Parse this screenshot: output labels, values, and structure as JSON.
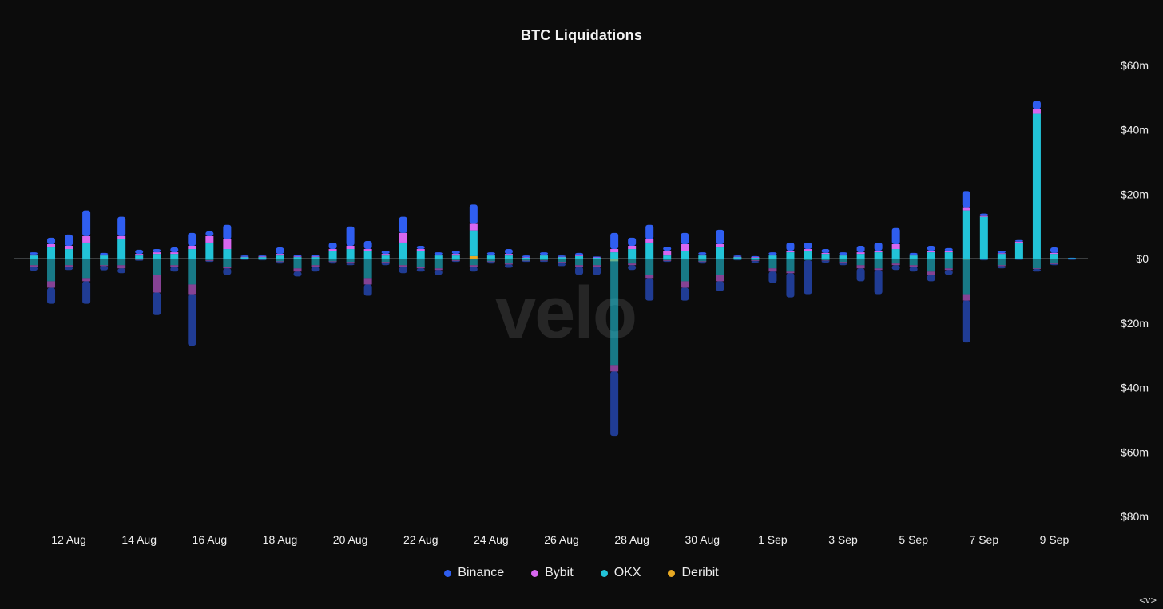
{
  "colors": {
    "background": "#0c0c0c",
    "binance": "#2f5ef0",
    "bybit": "#d867f0",
    "okx": "#22c3d8",
    "deribit": "#e8a923",
    "zero_line": "#8a9296"
  },
  "watermark": "velo",
  "corner_nav": "<v>",
  "chart_data": {
    "type": "bar",
    "title": "BTC Liquidations",
    "stacked": true,
    "diverging": true,
    "ylim": [
      -80,
      60
    ],
    "y_unit": "$m",
    "y_ticks": [
      {
        "value": 60,
        "label": "$60m"
      },
      {
        "value": 40,
        "label": "$40m"
      },
      {
        "value": 20,
        "label": "$20m"
      },
      {
        "value": 0,
        "label": "$0"
      },
      {
        "value": -20,
        "label": "$20m"
      },
      {
        "value": -40,
        "label": "$40m"
      },
      {
        "value": -60,
        "label": "$60m"
      },
      {
        "value": -80,
        "label": "$80m"
      }
    ],
    "x_ticks": [
      {
        "date": "2024-08-12",
        "label": "12 Aug"
      },
      {
        "date": "2024-08-14",
        "label": "14 Aug"
      },
      {
        "date": "2024-08-16",
        "label": "16 Aug"
      },
      {
        "date": "2024-08-18",
        "label": "18 Aug"
      },
      {
        "date": "2024-08-20",
        "label": "20 Aug"
      },
      {
        "date": "2024-08-22",
        "label": "22 Aug"
      },
      {
        "date": "2024-08-24",
        "label": "24 Aug"
      },
      {
        "date": "2024-08-26",
        "label": "26 Aug"
      },
      {
        "date": "2024-08-28",
        "label": "28 Aug"
      },
      {
        "date": "2024-08-30",
        "label": "30 Aug"
      },
      {
        "date": "2024-09-01",
        "label": "1 Sep"
      },
      {
        "date": "2024-09-03",
        "label": "3 Sep"
      },
      {
        "date": "2024-09-05",
        "label": "5 Sep"
      },
      {
        "date": "2024-09-07",
        "label": "7 Sep"
      },
      {
        "date": "2024-09-09",
        "label": "9 Sep"
      }
    ],
    "legend": [
      {
        "name": "Binance",
        "color": "#2f5ef0"
      },
      {
        "name": "Bybit",
        "color": "#d867f0"
      },
      {
        "name": "OKX",
        "color": "#22c3d8"
      },
      {
        "name": "Deribit",
        "color": "#e8a923"
      }
    ],
    "legend_position": "bottom-center",
    "series_order": [
      "deribit",
      "okx",
      "bybit",
      "binance"
    ],
    "bars": [
      {
        "t": "2024-08-11 00:00",
        "pos": {
          "okx": 1,
          "bybit": 0.3,
          "binance": 0.7
        },
        "neg": {
          "okx": 2,
          "bybit": 0.5,
          "binance": 1.2
        }
      },
      {
        "t": "2024-08-11 12:00",
        "pos": {
          "okx": 3.5,
          "bybit": 1,
          "binance": 2
        },
        "neg": {
          "okx": 7,
          "bybit": 2,
          "binance": 5
        }
      },
      {
        "t": "2024-08-12 00:00",
        "pos": {
          "okx": 3,
          "bybit": 1,
          "binance": 3.5
        },
        "neg": {
          "okx": 2,
          "bybit": 0.5,
          "binance": 1
        }
      },
      {
        "t": "2024-08-12 12:00",
        "pos": {
          "okx": 5,
          "bybit": 2,
          "binance": 8
        },
        "neg": {
          "okx": 6,
          "bybit": 1,
          "binance": 7
        }
      },
      {
        "t": "2024-08-13 00:00",
        "pos": {
          "okx": 1,
          "bybit": 0.2,
          "binance": 0.6
        },
        "neg": {
          "okx": 2,
          "bybit": 0.3,
          "binance": 1.3
        }
      },
      {
        "t": "2024-08-13 12:00",
        "pos": {
          "okx": 6,
          "bybit": 1,
          "binance": 6
        },
        "neg": {
          "okx": 2,
          "bybit": 1,
          "binance": 1.5
        }
      },
      {
        "t": "2024-08-14 00:00",
        "pos": {
          "okx": 1,
          "bybit": 0.5,
          "binance": 1.3
        },
        "neg": {
          "okx": 0.3,
          "bybit": 0.1,
          "binance": 0.2
        }
      },
      {
        "t": "2024-08-14 12:00",
        "pos": {
          "okx": 1.5,
          "bybit": 0.5,
          "binance": 1
        },
        "neg": {
          "okx": 5,
          "bybit": 5.5,
          "binance": 7
        }
      },
      {
        "t": "2024-08-15 00:00",
        "pos": {
          "okx": 1.5,
          "bybit": 0.5,
          "binance": 1.5
        },
        "neg": {
          "okx": 2,
          "bybit": 0.5,
          "binance": 1.5
        }
      },
      {
        "t": "2024-08-15 12:00",
        "pos": {
          "okx": 3,
          "bybit": 1,
          "binance": 4
        },
        "neg": {
          "okx": 8,
          "bybit": 3,
          "binance": 16
        }
      },
      {
        "t": "2024-08-16 00:00",
        "pos": {
          "okx": 5,
          "bybit": 2,
          "binance": 1.5
        },
        "neg": {
          "okx": 0.5,
          "bybit": 0.2,
          "binance": 0.3
        }
      },
      {
        "t": "2024-08-16 12:00",
        "pos": {
          "okx": 3,
          "bybit": 3,
          "binance": 4.5
        },
        "neg": {
          "okx": 2.5,
          "bybit": 0.5,
          "binance": 2
        }
      },
      {
        "t": "2024-08-17 00:00",
        "pos": {
          "okx": 0.5,
          "bybit": 0.1,
          "binance": 0.4
        },
        "neg": {
          "okx": 0.2,
          "bybit": 0,
          "binance": 0.1
        }
      },
      {
        "t": "2024-08-17 12:00",
        "pos": {
          "okx": 0.5,
          "bybit": 0.2,
          "binance": 0.3
        },
        "neg": {
          "okx": 0.3,
          "bybit": 0,
          "binance": 0.2
        }
      },
      {
        "t": "2024-08-18 00:00",
        "pos": {
          "okx": 1,
          "bybit": 0.5,
          "binance": 2
        },
        "neg": {
          "okx": 0.8,
          "bybit": 0.2,
          "binance": 0.5
        }
      },
      {
        "t": "2024-08-18 12:00",
        "pos": {
          "okx": 0.5,
          "bybit": 0.2,
          "binance": 0.5
        },
        "neg": {
          "okx": 3,
          "bybit": 1,
          "binance": 1.5
        }
      },
      {
        "t": "2024-08-19 00:00",
        "pos": {
          "okx": 0.5,
          "bybit": 0.2,
          "binance": 0.5
        },
        "neg": {
          "okx": 2,
          "bybit": 0.5,
          "binance": 1.5
        }
      },
      {
        "t": "2024-08-19 12:00",
        "pos": {
          "okx": 2.5,
          "bybit": 0.5,
          "binance": 2
        },
        "neg": {
          "okx": 0.8,
          "bybit": 0.2,
          "binance": 0.5
        }
      },
      {
        "t": "2024-08-20 00:00",
        "pos": {
          "okx": 3,
          "bybit": 1,
          "binance": 6
        },
        "neg": {
          "okx": 1,
          "bybit": 0.5,
          "binance": 0.5
        }
      },
      {
        "t": "2024-08-20 12:00",
        "pos": {
          "okx": 2.5,
          "bybit": 0.5,
          "binance": 2.5
        },
        "neg": {
          "okx": 6,
          "bybit": 2,
          "binance": 3.5
        }
      },
      {
        "t": "2024-08-21 00:00",
        "pos": {
          "okx": 1,
          "bybit": 0.5,
          "binance": 1
        },
        "neg": {
          "okx": 1,
          "bybit": 0.3,
          "binance": 0.7
        }
      },
      {
        "t": "2024-08-21 12:00",
        "pos": {
          "okx": 5,
          "bybit": 3,
          "binance": 5
        },
        "neg": {
          "okx": 2,
          "bybit": 0.5,
          "binance": 2
        }
      },
      {
        "t": "2024-08-22 00:00",
        "pos": {
          "okx": 2.5,
          "bybit": 0.5,
          "binance": 1
        },
        "neg": {
          "okx": 2.5,
          "bybit": 0.5,
          "binance": 1
        }
      },
      {
        "t": "2024-08-22 12:00",
        "pos": {
          "okx": 1,
          "bybit": 0.2,
          "binance": 0.8
        },
        "neg": {
          "okx": 3,
          "bybit": 0.5,
          "binance": 1.5
        }
      },
      {
        "t": "2024-08-23 00:00",
        "pos": {
          "okx": 1,
          "bybit": 0.5,
          "binance": 1
        },
        "neg": {
          "okx": 0.5,
          "bybit": 0.2,
          "binance": 0.3
        }
      },
      {
        "t": "2024-08-23 12:00",
        "pos": {
          "okx": 8,
          "bybit": 2,
          "binance": 6
        },
        "deribit": 0.8,
        "neg": {
          "okx": 2,
          "bybit": 0.5,
          "binance": 1.5
        }
      },
      {
        "t": "2024-08-24 00:00",
        "pos": {
          "okx": 1,
          "bybit": 0.2,
          "binance": 0.8
        },
        "neg": {
          "okx": 0.8,
          "bybit": 0.2,
          "binance": 0.5
        }
      },
      {
        "t": "2024-08-24 12:00",
        "pos": {
          "okx": 1,
          "bybit": 0.5,
          "binance": 1.5
        },
        "neg": {
          "okx": 1.5,
          "bybit": 0.3,
          "binance": 1
        }
      },
      {
        "t": "2024-08-25 00:00",
        "pos": {
          "okx": 0.3,
          "bybit": 0.1,
          "binance": 0.6
        },
        "neg": {
          "okx": 0.6,
          "bybit": 0.1,
          "binance": 0.3
        }
      },
      {
        "t": "2024-08-25 12:00",
        "pos": {
          "okx": 1,
          "bybit": 0.2,
          "binance": 0.8
        },
        "neg": {
          "okx": 0.5,
          "bybit": 0.1,
          "binance": 0.4
        }
      },
      {
        "t": "2024-08-26 00:00",
        "pos": {
          "okx": 0.5,
          "bybit": 0.1,
          "binance": 0.4
        },
        "neg": {
          "okx": 1,
          "bybit": 0.3,
          "binance": 1
        }
      },
      {
        "t": "2024-08-26 12:00",
        "pos": {
          "okx": 0.8,
          "bybit": 0.2,
          "binance": 0.8
        },
        "neg": {
          "okx": 2,
          "bybit": 0.5,
          "binance": 2.5
        }
      },
      {
        "t": "2024-08-27 00:00",
        "pos": {
          "okx": 0.3,
          "bybit": 0.1,
          "binance": 0.3
        },
        "neg": {
          "okx": 2,
          "bybit": 0.5,
          "binance": 2.5
        }
      },
      {
        "t": "2024-08-27 12:00",
        "pos": {
          "okx": 2,
          "bybit": 1,
          "binance": 5
        },
        "deribit": -0.8,
        "neg": {
          "okx": 33,
          "bybit": 2,
          "binance": 20
        }
      },
      {
        "t": "2024-08-28 00:00",
        "pos": {
          "okx": 3,
          "bybit": 1,
          "binance": 2.5
        },
        "neg": {
          "okx": 1.5,
          "bybit": 0.5,
          "binance": 1.5
        }
      },
      {
        "t": "2024-08-28 12:00",
        "pos": {
          "okx": 5,
          "bybit": 1,
          "binance": 4.5
        },
        "neg": {
          "okx": 5,
          "bybit": 1,
          "binance": 7
        }
      },
      {
        "t": "2024-08-29 00:00",
        "pos": {
          "okx": 1,
          "bybit": 1.5,
          "binance": 1.2
        },
        "neg": {
          "okx": 0.5,
          "bybit": 0.2,
          "binance": 0.3
        }
      },
      {
        "t": "2024-08-29 12:00",
        "pos": {
          "okx": 2.5,
          "bybit": 2,
          "binance": 3.5
        },
        "neg": {
          "okx": 7,
          "bybit": 2,
          "binance": 4
        }
      },
      {
        "t": "2024-08-30 00:00",
        "pos": {
          "okx": 1,
          "bybit": 0.3,
          "binance": 0.7
        },
        "neg": {
          "okx": 0.8,
          "bybit": 0.2,
          "binance": 0.5
        }
      },
      {
        "t": "2024-08-30 12:00",
        "pos": {
          "okx": 3.5,
          "bybit": 1,
          "binance": 4.5
        },
        "neg": {
          "okx": 5,
          "bybit": 2,
          "binance": 3
        }
      },
      {
        "t": "2024-08-31 00:00",
        "pos": {
          "okx": 0.5,
          "bybit": 0.1,
          "binance": 0.4
        },
        "neg": {
          "okx": 0.3,
          "bybit": 0,
          "binance": 0.2
        }
      },
      {
        "t": "2024-08-31 12:00",
        "pos": {
          "okx": 0.3,
          "bybit": 0.2,
          "binance": 0.3
        },
        "neg": {
          "okx": 0.5,
          "bybit": 0.2,
          "binance": 0.5
        }
      },
      {
        "t": "2024-09-01 00:00",
        "pos": {
          "okx": 1,
          "bybit": 0.2,
          "binance": 0.8
        },
        "neg": {
          "okx": 3,
          "bybit": 1,
          "binance": 3.5
        }
      },
      {
        "t": "2024-09-01 12:00",
        "pos": {
          "okx": 2,
          "bybit": 0.5,
          "binance": 2.5
        },
        "neg": {
          "okx": 4,
          "bybit": 0.5,
          "binance": 7.5
        }
      },
      {
        "t": "2024-09-02 00:00",
        "pos": {
          "okx": 2.5,
          "bybit": 0.5,
          "binance": 2
        },
        "neg": {
          "okx": 0.5,
          "bybit": 0,
          "binance": 10.5
        }
      },
      {
        "t": "2024-09-02 12:00",
        "pos": {
          "okx": 1.5,
          "bybit": 0.3,
          "binance": 1.2
        },
        "neg": {
          "okx": 0.5,
          "bybit": 0.1,
          "binance": 0.6
        }
      },
      {
        "t": "2024-09-03 00:00",
        "pos": {
          "okx": 1,
          "bybit": 0.2,
          "binance": 0.8
        },
        "neg": {
          "okx": 1,
          "bybit": 0.2,
          "binance": 0.8
        }
      },
      {
        "t": "2024-09-03 12:00",
        "pos": {
          "okx": 1.5,
          "bybit": 0.5,
          "binance": 2
        },
        "neg": {
          "okx": 2,
          "bybit": 1,
          "binance": 4
        }
      },
      {
        "t": "2024-09-04 00:00",
        "pos": {
          "okx": 2,
          "bybit": 0.5,
          "binance": 2.5
        },
        "neg": {
          "okx": 3,
          "bybit": 0.5,
          "binance": 7.5
        }
      },
      {
        "t": "2024-09-04 12:00",
        "pos": {
          "okx": 3,
          "bybit": 1.5,
          "binance": 5
        },
        "neg": {
          "okx": 1.5,
          "bybit": 0.5,
          "binance": 1.5
        }
      },
      {
        "t": "2024-09-05 00:00",
        "pos": {
          "okx": 1,
          "bybit": 0.2,
          "binance": 0.6
        },
        "neg": {
          "okx": 2,
          "bybit": 0.5,
          "binance": 1.5
        }
      },
      {
        "t": "2024-09-05 12:00",
        "pos": {
          "okx": 2,
          "bybit": 0.5,
          "binance": 1.5
        },
        "neg": {
          "okx": 4,
          "bybit": 1,
          "binance": 2
        }
      },
      {
        "t": "2024-09-06 00:00",
        "pos": {
          "okx": 2,
          "bybit": 0.3,
          "binance": 1
        },
        "neg": {
          "okx": 3,
          "bybit": 0.5,
          "binance": 1.5
        }
      },
      {
        "t": "2024-09-06 12:00",
        "pos": {
          "okx": 15,
          "bybit": 1,
          "binance": 5
        },
        "deribit": -0.3,
        "neg": {
          "okx": 11,
          "bybit": 2,
          "binance": 13
        }
      },
      {
        "t": "2024-09-07 00:00",
        "pos": {
          "okx": 13,
          "bybit": 0.5,
          "binance": 0.5
        },
        "neg": {
          "okx": 0.3,
          "bybit": 0,
          "binance": 0.2
        }
      },
      {
        "t": "2024-09-07 12:00",
        "pos": {
          "okx": 1.5,
          "bybit": 0.2,
          "binance": 0.8
        },
        "neg": {
          "okx": 2,
          "bybit": 0.3,
          "binance": 0.7
        }
      },
      {
        "t": "2024-09-08 00:00",
        "pos": {
          "okx": 5,
          "bybit": 0.3,
          "binance": 0.5
        },
        "neg": {
          "okx": 0.2,
          "bybit": 0,
          "binance": 0.1
        }
      },
      {
        "t": "2024-09-08 12:00",
        "pos": {
          "okx": 45,
          "bybit": 1.5,
          "binance": 2.5
        },
        "neg": {
          "okx": 3,
          "bybit": 0.2,
          "binance": 0.8
        }
      },
      {
        "t": "2024-09-09 00:00",
        "pos": {
          "okx": 1.5,
          "bybit": 0.3,
          "binance": 1.7
        },
        "neg": {
          "okx": 1.5,
          "bybit": 0.2,
          "binance": 0.3
        }
      },
      {
        "t": "2024-09-09 12:00",
        "pos": {
          "okx": 0.2,
          "bybit": 0,
          "binance": 0.1
        },
        "neg": {
          "okx": 0.2,
          "bybit": 0,
          "binance": 0.1
        }
      }
    ]
  }
}
